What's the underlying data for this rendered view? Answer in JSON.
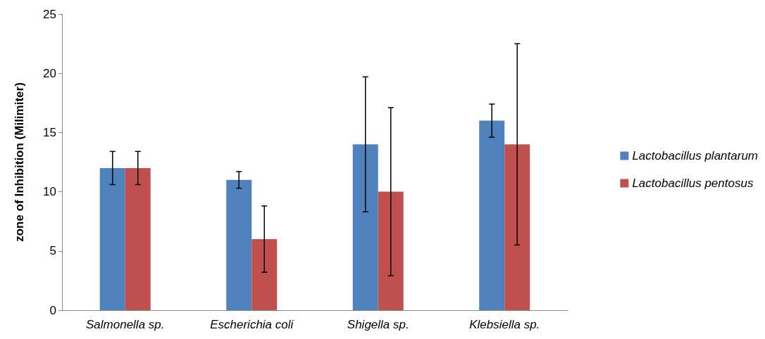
{
  "chart_data": {
    "type": "bar",
    "ylabel": "zone of Inhibition (Milimiter)",
    "categories": [
      "Salmonella sp.",
      "Escherichia coli",
      "Shigella sp.",
      "Klebsiella sp."
    ],
    "series": [
      {
        "name": "Lactobacillus plantarum",
        "color": "#4f81bd",
        "values": [
          12,
          11,
          14,
          16
        ],
        "errors": [
          1.4,
          0.7,
          5.7,
          1.4
        ]
      },
      {
        "name": "Lactobacillus pentosus",
        "color": "#c0504d",
        "values": [
          12,
          6,
          10,
          14
        ],
        "errors": [
          1.4,
          2.8,
          7.1,
          8.5
        ]
      }
    ],
    "ylim": [
      0,
      25
    ],
    "yticks": [
      0,
      5,
      10,
      15,
      20,
      25
    ],
    "grid": false,
    "legend": "right"
  }
}
